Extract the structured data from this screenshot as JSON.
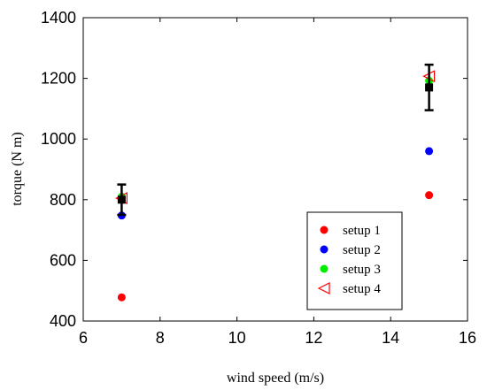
{
  "chart_data": {
    "type": "scatter",
    "xlabel": "wind speed (m/s)",
    "ylabel": "torque (N m)",
    "xlim": [
      6,
      16
    ],
    "ylim": [
      400,
      1400
    ],
    "xticks": [
      6,
      8,
      10,
      12,
      14,
      16
    ],
    "yticks": [
      400,
      600,
      800,
      1000,
      1200,
      1400
    ],
    "grid": false,
    "legend_position": "bottom-right",
    "series": [
      {
        "name": "setup 1",
        "marker": "circle",
        "color": "#ff0000",
        "x": [
          7,
          15
        ],
        "y": [
          478,
          815
        ]
      },
      {
        "name": "setup 2",
        "marker": "circle",
        "color": "#0000ff",
        "x": [
          7,
          15
        ],
        "y": [
          748,
          960
        ]
      },
      {
        "name": "setup 3",
        "marker": "circle",
        "color": "#00ee00",
        "x": [
          7,
          15
        ],
        "y": [
          810,
          1192
        ]
      },
      {
        "name": "setup 4",
        "marker": "triangle-left-open",
        "color": "#ff0000",
        "x": [
          7,
          15
        ],
        "y": [
          805,
          1207
        ]
      }
    ],
    "mean_with_error": {
      "color": "#000000",
      "marker": "square",
      "x": [
        7,
        15
      ],
      "y": [
        800,
        1170
      ],
      "lower": [
        750,
        1095
      ],
      "upper": [
        850,
        1245
      ]
    }
  }
}
